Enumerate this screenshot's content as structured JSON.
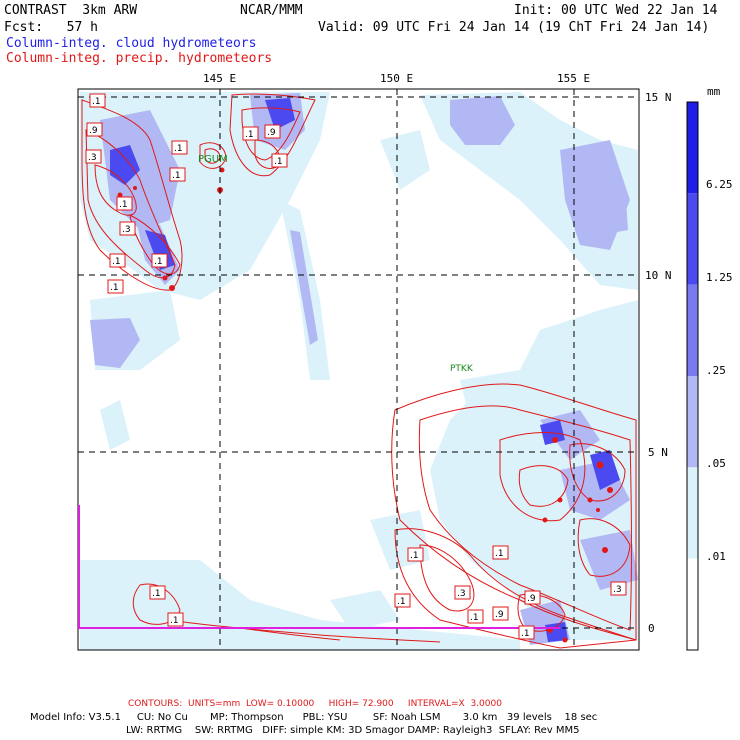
{
  "header": {
    "model": "CONTRAST  3km ARW",
    "center": "NCAR/MMM",
    "init": "Init: 00 UTC Wed 22 Jan 14",
    "fcst": "Fcst:   57 h",
    "valid": "Valid: 09 UTC Fri 24 Jan 14 (19 ChT Fri 24 Jan 14)",
    "field1": "Column-integ. cloud hydrometeors",
    "field2": "Column-integ. precip. hydrometeors"
  },
  "colors": {
    "field1_color": "#1e1ee6",
    "field2_color": "#e01818",
    "contour_color": "#e01818"
  },
  "map": {
    "lon_labels": [
      "145 E",
      "150 E",
      "155 E"
    ],
    "lat_labels": [
      "15 N",
      "10 N",
      "5 N",
      "0"
    ],
    "stations": [
      "PGUM",
      "PTKK"
    ],
    "contour_labels": [
      ".1",
      ".9",
      ".1",
      ".3",
      ".1",
      ".1",
      ".9",
      ".1",
      ".1",
      ".3",
      ".1",
      ".1",
      ".1",
      ".1",
      ".1",
      ".3",
      ".1",
      ".1",
      ".1",
      ".9",
      ".9",
      ".1",
      ".3",
      ".1"
    ]
  },
  "colorbar": {
    "unit": "mm",
    "levels": [
      "6.25",
      "1.25",
      ".25",
      ".05",
      ".01"
    ],
    "colors": [
      "#1e1ee6",
      "#4a4af0",
      "#7a7af0",
      "#b2b8f4",
      "#dcf2fa",
      "#ffffff"
    ]
  },
  "footer": {
    "contours": "CONTOURS:  UNITS=mm  LOW= 0.10000     HIGH= 72.900     INTERVAL=X  3.0000",
    "model_info_1": "Model Info: V3.5.1     CU: No Cu       MP: Thompson      PBL: YSU        SF: Noah LSM       3.0 km   39 levels    18 sec",
    "model_info_2": "LW: RRTMG    SW: RRTMG   DIFF: simple KM: 3D Smagor DAMP: Rayleigh3  SFLAY: Rev MM5"
  }
}
